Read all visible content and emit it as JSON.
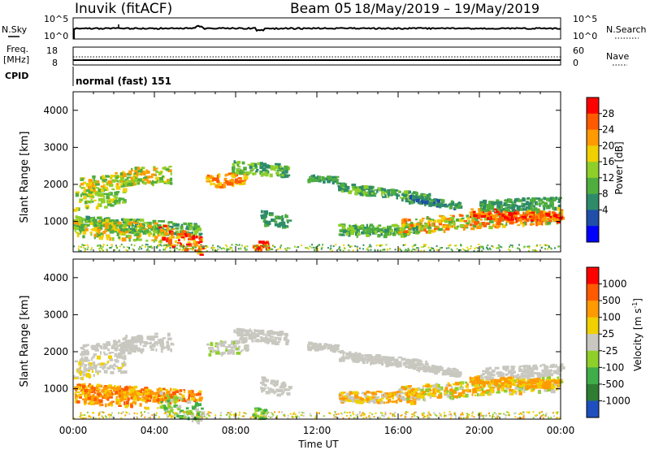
{
  "header": {
    "station": "Inuvik (fitACF)",
    "beam": "Beam 05",
    "dates": "18/May/2019 – 19/May/2019"
  },
  "noise_panel": {
    "left_label": "N.Sky",
    "right_label": "N.Search",
    "left_ticks": [
      "10^5",
      "10^0"
    ],
    "right_ticks": [
      "10^5",
      "10^0"
    ]
  },
  "freq_panel": {
    "left_label_1": "Freq.",
    "left_label_2": "[MHz]",
    "right_label": "Nave",
    "left_ticks": [
      "18",
      "8"
    ],
    "right_ticks": [
      "60",
      "0"
    ]
  },
  "cpid": {
    "label": "CPID",
    "value": "normal (fast) 151"
  },
  "chart_data": [
    {
      "type": "heatmap",
      "name_hint": "power",
      "ylabel": "Slant Range [km]",
      "ylim": [
        180,
        4500
      ],
      "yticks": [
        "1000",
        "2000",
        "3000",
        "4000"
      ],
      "colorbar": {
        "label": "Power [dB]",
        "ticks": [
          "28",
          "24",
          "20",
          "16",
          "12",
          "8",
          "4"
        ],
        "range": [
          0,
          30
        ],
        "colors": [
          "#0000ff",
          "#1f4fa8",
          "#2e8b6a",
          "#4fae3e",
          "#8fcf2a",
          "#f0d000",
          "#ff9a00",
          "#ff5a00",
          "#ff0000"
        ]
      }
    },
    {
      "type": "heatmap",
      "name_hint": "velocity",
      "ylabel": "Slant Range [km]",
      "ylim": [
        180,
        4500
      ],
      "yticks": [
        "1000",
        "2000",
        "3000",
        "4000"
      ],
      "colorbar": {
        "label_main": "Velocity [m s",
        "label_sup": "-1",
        "label_end": "]",
        "ticks": [
          "1000",
          "500",
          "100",
          "25",
          "-25",
          "-100",
          "-500",
          "-1000"
        ],
        "colors": [
          "#1f4fbf",
          "#2e7d32",
          "#3fae49",
          "#8fcf2a",
          "#c8c8c0",
          "#f0d000",
          "#ff9a00",
          "#ff5a00",
          "#ff0000"
        ]
      }
    }
  ],
  "xaxis": {
    "label": "Time UT",
    "ticks": [
      "00:00",
      "04:00",
      "08:00",
      "12:00",
      "16:00",
      "20:00",
      "00:00"
    ]
  }
}
